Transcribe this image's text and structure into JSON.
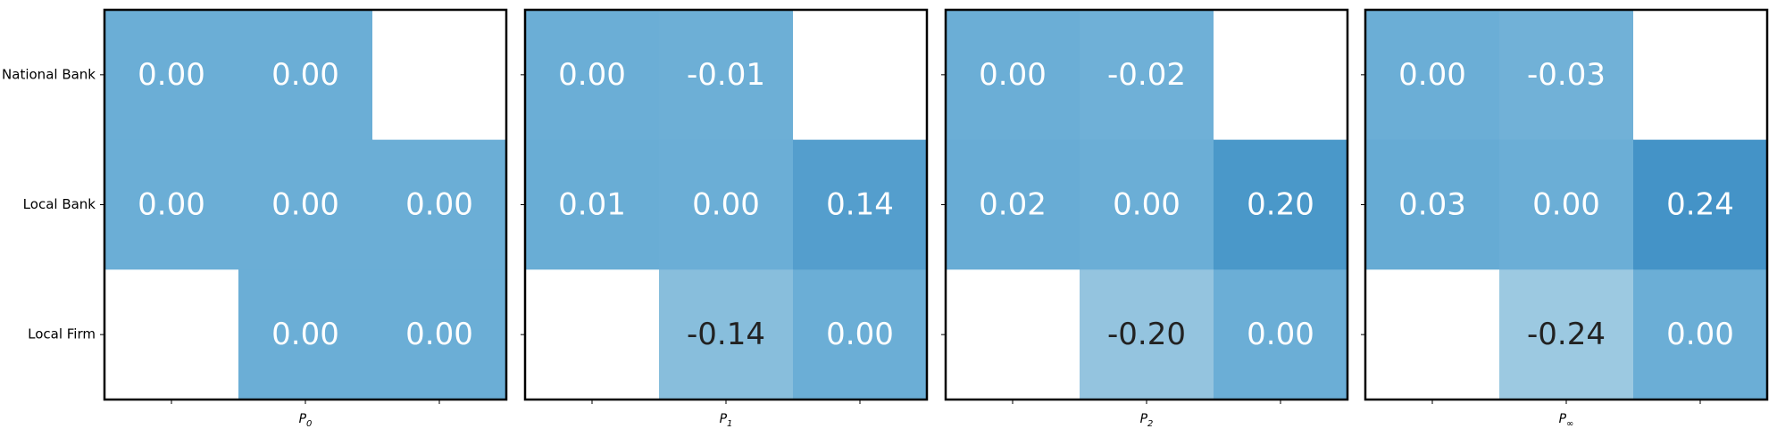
{
  "chart_data": {
    "type": "heatmap",
    "rows": [
      "National Bank",
      "Local Bank",
      "Local Firm"
    ],
    "panels": [
      {
        "xlabel": "P0",
        "xlabel_base": "P",
        "xlabel_sub": "0",
        "values": [
          [
            0.0,
            0.0,
            null
          ],
          [
            0.0,
            0.0,
            0.0
          ],
          [
            null,
            0.0,
            0.0
          ]
        ],
        "labels": [
          [
            "0.00",
            "0.00",
            ""
          ],
          [
            "0.00",
            "0.00",
            "0.00"
          ],
          [
            "",
            "0.00",
            "0.00"
          ]
        ]
      },
      {
        "xlabel": "P1",
        "xlabel_base": "P",
        "xlabel_sub": "1",
        "values": [
          [
            0.0,
            -0.01,
            null
          ],
          [
            0.01,
            0.0,
            0.14
          ],
          [
            null,
            -0.14,
            0.0
          ]
        ],
        "labels": [
          [
            "0.00",
            "-0.01",
            ""
          ],
          [
            "0.01",
            "0.00",
            "0.14"
          ],
          [
            "",
            "-0.14",
            "0.00"
          ]
        ]
      },
      {
        "xlabel": "P2",
        "xlabel_base": "P",
        "xlabel_sub": "2",
        "values": [
          [
            0.0,
            -0.02,
            null
          ],
          [
            0.02,
            0.0,
            0.2
          ],
          [
            null,
            -0.2,
            0.0
          ]
        ],
        "labels": [
          [
            "0.00",
            "-0.02",
            ""
          ],
          [
            "0.02",
            "0.00",
            "0.20"
          ],
          [
            "",
            "-0.20",
            "0.00"
          ]
        ]
      },
      {
        "xlabel": "P∞",
        "xlabel_base": "P",
        "xlabel_sub": "∞",
        "values": [
          [
            0.0,
            -0.03,
            null
          ],
          [
            0.03,
            0.0,
            0.24
          ],
          [
            null,
            -0.24,
            0.0
          ]
        ],
        "labels": [
          [
            "0.00",
            "-0.03",
            ""
          ],
          [
            "0.03",
            "0.00",
            "0.24"
          ],
          [
            "",
            "-0.24",
            "0.00"
          ]
        ]
      }
    ],
    "colormap": "Blues",
    "color_range": [
      -1,
      1
    ],
    "light_text_color": "#ffffff",
    "dark_text_color": "#222222",
    "grid": false
  }
}
